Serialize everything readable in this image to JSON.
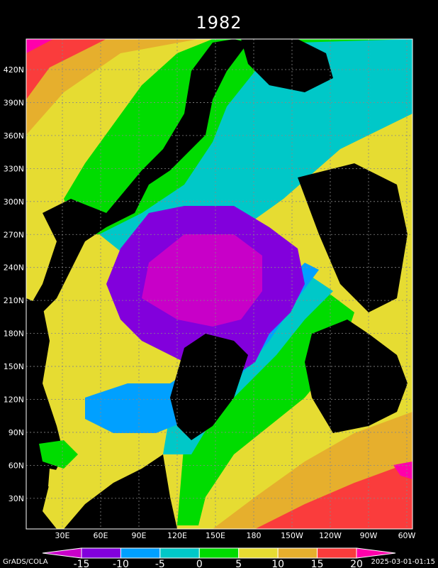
{
  "title": "1982",
  "y_ticks": [
    "420N",
    "390N",
    "360N",
    "330N",
    "300N",
    "270N",
    "240N",
    "210N",
    "180N",
    "150N",
    "120N",
    "90N",
    "60N",
    "30N"
  ],
  "x_ticks": [
    "30E",
    "60E",
    "90E",
    "120E",
    "150E",
    "180",
    "150W",
    "120W",
    "90W",
    "60W"
  ],
  "colorbar": {
    "levels": [
      "-15",
      "-10",
      "-5",
      "0",
      "5",
      "10",
      "15",
      "20"
    ],
    "colors": [
      "#c800c8",
      "#8200dc",
      "#00a0ff",
      "#00c8c8",
      "#00dc00",
      "#e6dc32",
      "#e6af2d",
      "#fa3c3c",
      "#ff00aa"
    ]
  },
  "palette": {
    "land": "#000000",
    "magenta": "#c800c8",
    "violet": "#8200dc",
    "blue": "#00a0ff",
    "cyan": "#00c8c8",
    "green": "#00dc00",
    "yellow": "#e6dc32",
    "orange": "#e6af2d",
    "red": "#fa3c3c",
    "pink": "#ff00aa"
  },
  "footer": {
    "left": "GrADS/COLA",
    "right": "2025-03-01-01:15"
  }
}
